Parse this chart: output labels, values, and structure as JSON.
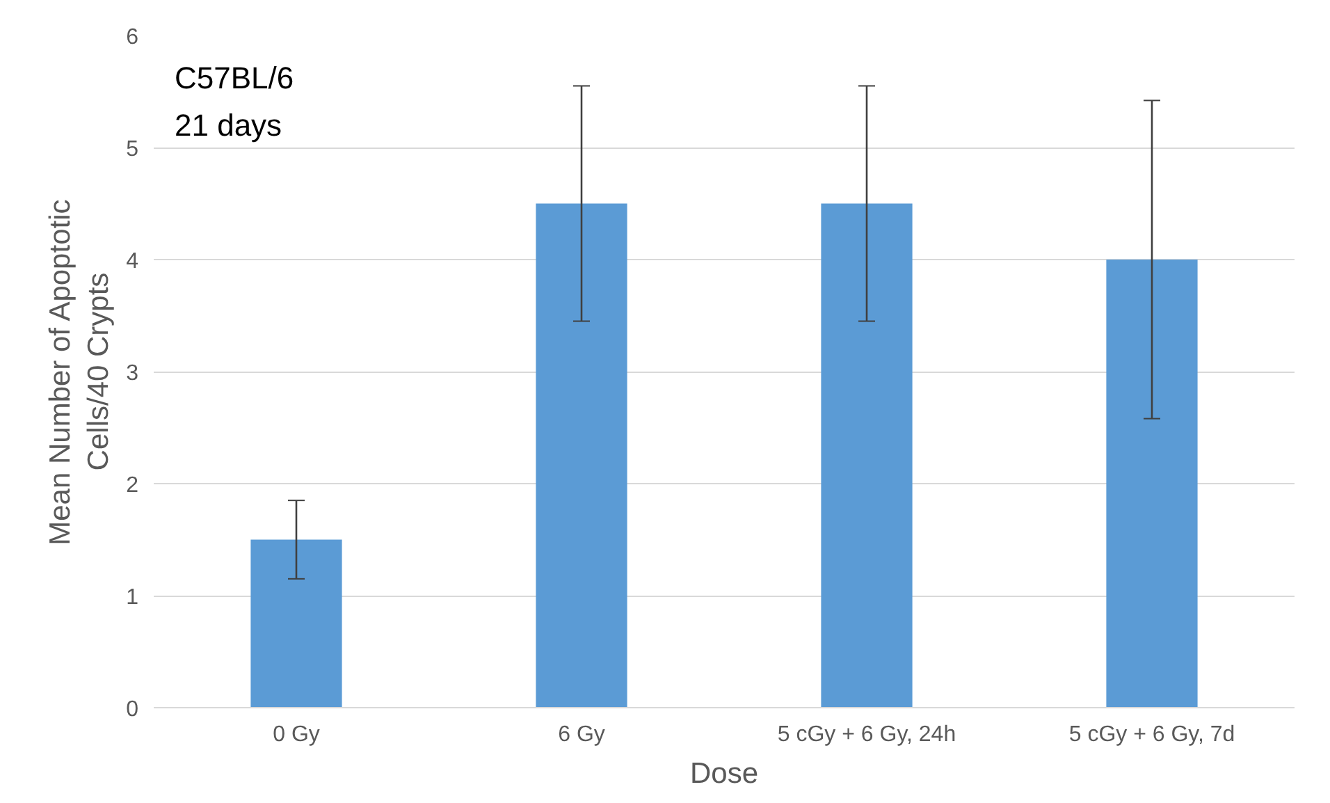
{
  "chart_data": {
    "type": "bar",
    "xlabel": "Dose",
    "ylabel": "Mean Number of Apoptotic Cells/40 Crypts",
    "categories": [
      "0 Gy",
      "6 Gy",
      "5 cGy + 6 Gy, 24h",
      "5 cGy + 6 Gy, 7d"
    ],
    "values": [
      1.5,
      4.5,
      4.5,
      4.0
    ],
    "errors": [
      0.35,
      1.05,
      1.05,
      1.42
    ],
    "color": "#5b9bd5",
    "ylim": [
      0,
      6
    ],
    "yticks": [
      0,
      1,
      2,
      3,
      4,
      5,
      6
    ],
    "grid": "y",
    "annotations": [
      "C57BL/6",
      "21 days"
    ]
  }
}
